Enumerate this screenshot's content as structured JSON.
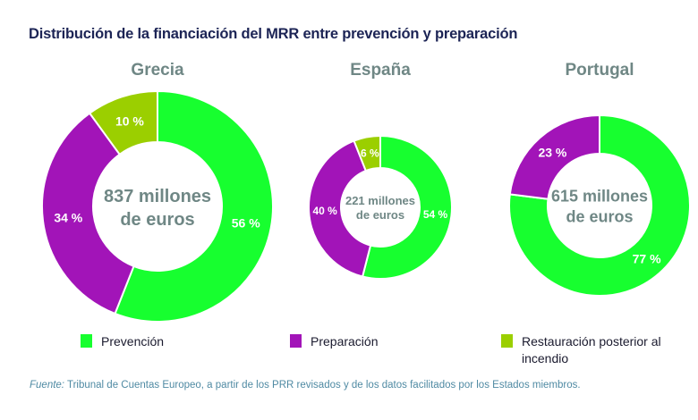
{
  "chart_data": {
    "type": "pie",
    "variant": "donut",
    "title": "Distribución de la financiación del MRR entre prevención y preparación",
    "categories": [
      "Prevención",
      "Preparación",
      "Restauración posterior al incendio"
    ],
    "colors": {
      "Prevención": "#17ff2f",
      "Preparación": "#a214b8",
      "Restauración posterior al incendio": "#9bcf00"
    },
    "charts": [
      {
        "name": "Grecia",
        "center_label": [
          "837 millones",
          "de euros"
        ],
        "total_millions_eur": 837,
        "slices": [
          {
            "category": "Prevención",
            "value": 56,
            "label": "56 %"
          },
          {
            "category": "Preparación",
            "value": 34,
            "label": "34 %"
          },
          {
            "category": "Restauración posterior al incendio",
            "value": 10,
            "label": "10 %"
          }
        ]
      },
      {
        "name": "España",
        "center_label": [
          "221 millones",
          "de euros"
        ],
        "total_millions_eur": 221,
        "slices": [
          {
            "category": "Prevención",
            "value": 54,
            "label": "54 %"
          },
          {
            "category": "Preparación",
            "value": 40,
            "label": "40 %"
          },
          {
            "category": "Restauración posterior al incendio",
            "value": 6,
            "label": "6 %"
          }
        ]
      },
      {
        "name": "Portugal",
        "center_label": [
          "615 millones",
          "de euros"
        ],
        "total_millions_eur": 615,
        "slices": [
          {
            "category": "Prevención",
            "value": 77,
            "label": "77 %"
          },
          {
            "category": "Preparación",
            "value": 23,
            "label": "23 %"
          }
        ]
      }
    ],
    "legend": {
      "placement": "bottom",
      "entries": [
        "Prevención",
        "Preparación",
        "Restauración posterior al incendio"
      ]
    }
  },
  "header": {
    "title": "Distribución de la financiación del MRR entre prevención y preparación"
  },
  "countries": [
    "Grecia",
    "España",
    "Portugal"
  ],
  "legend": {
    "prevencion": "Prevención",
    "preparacion": "Preparación",
    "restauracion": "Restauración posterior al incendio"
  },
  "source": {
    "label": "Fuente:",
    "text": " Tribunal de Cuentas Europeo, a partir de los PRR revisados y de los datos facilitados por los Estados miembros."
  }
}
